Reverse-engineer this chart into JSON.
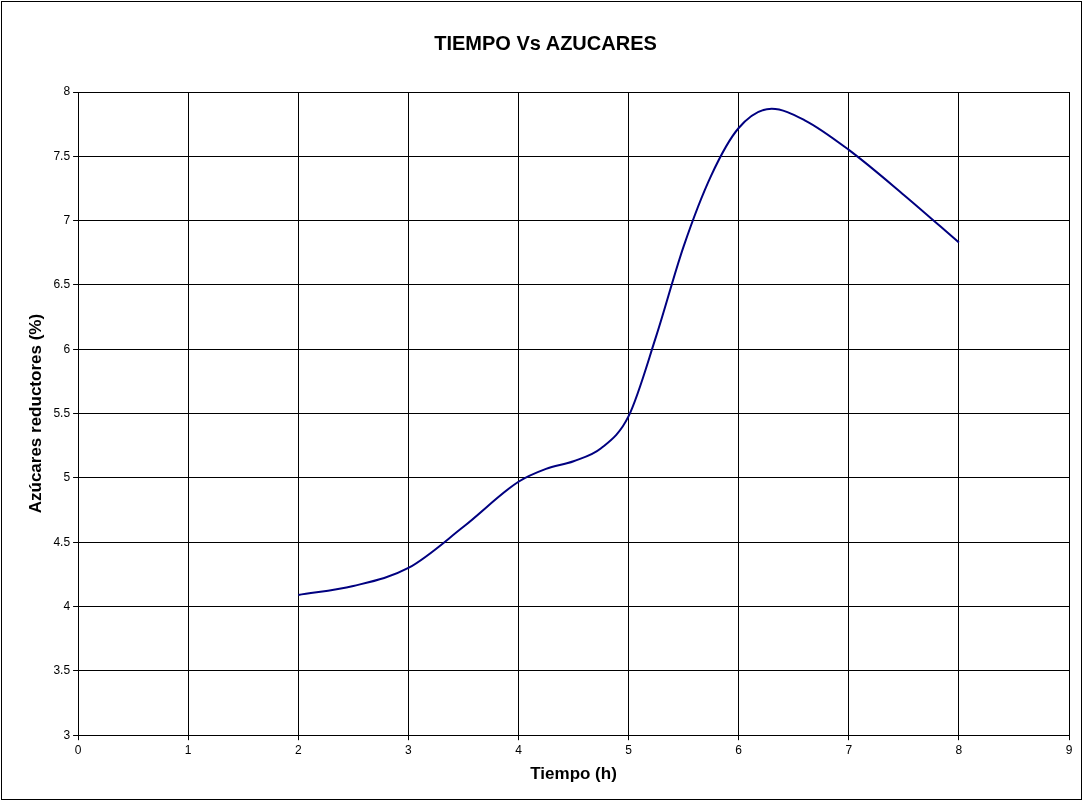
{
  "chart_data": {
    "type": "line",
    "title": "TIEMPO Vs AZUCARES",
    "xlabel": "Tiempo (h)",
    "ylabel": "Azúcares reductores (%)",
    "x": [
      2,
      2.5,
      3,
      3.5,
      4,
      4.25,
      4.5,
      4.75,
      5,
      5.25,
      5.5,
      5.75,
      6,
      6.3,
      6.6,
      7,
      7.5,
      8
    ],
    "series": [
      {
        "color": "#000080",
        "values": [
          4.09,
          4.16,
          4.3,
          4.62,
          4.97,
          5.07,
          5.13,
          5.23,
          5.48,
          6.1,
          6.8,
          7.35,
          7.72,
          7.87,
          7.78,
          7.55,
          7.2,
          6.83
        ]
      }
    ],
    "xlim": [
      0,
      9
    ],
    "xticks": [
      0,
      1,
      2,
      3,
      4,
      5,
      6,
      7,
      8,
      9
    ],
    "ylim": [
      3,
      8
    ],
    "yticks": [
      3,
      3.5,
      4,
      4.5,
      5,
      5.5,
      6,
      6.5,
      7,
      7.5,
      8
    ],
    "grid": true,
    "legend": false,
    "marker": "none",
    "line_style": "solid"
  }
}
